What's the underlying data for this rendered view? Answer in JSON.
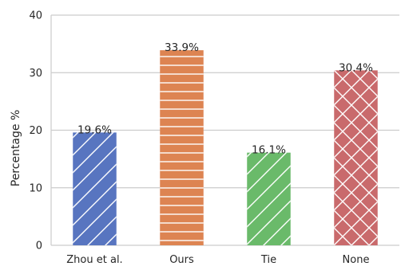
{
  "chart_data": {
    "type": "bar",
    "title": "",
    "xlabel": "",
    "ylabel": "Percentage %",
    "ylim": [
      0,
      40
    ],
    "yticks": [
      0,
      10,
      20,
      30,
      40
    ],
    "grid": "horizontal",
    "categories": [
      "Zhou et al.",
      "Ours",
      "Tie",
      "None"
    ],
    "values": [
      19.6,
      33.9,
      16.1,
      30.4
    ],
    "bar_labels": [
      "19.6%",
      "33.9%",
      "16.1%",
      "30.4%"
    ],
    "colors": [
      "#5875c0",
      "#dd8452",
      "#6aba6a",
      "#c96a6c"
    ],
    "hatches": [
      "diagonal",
      "horizontal",
      "diagonal",
      "crosshatch"
    ]
  }
}
